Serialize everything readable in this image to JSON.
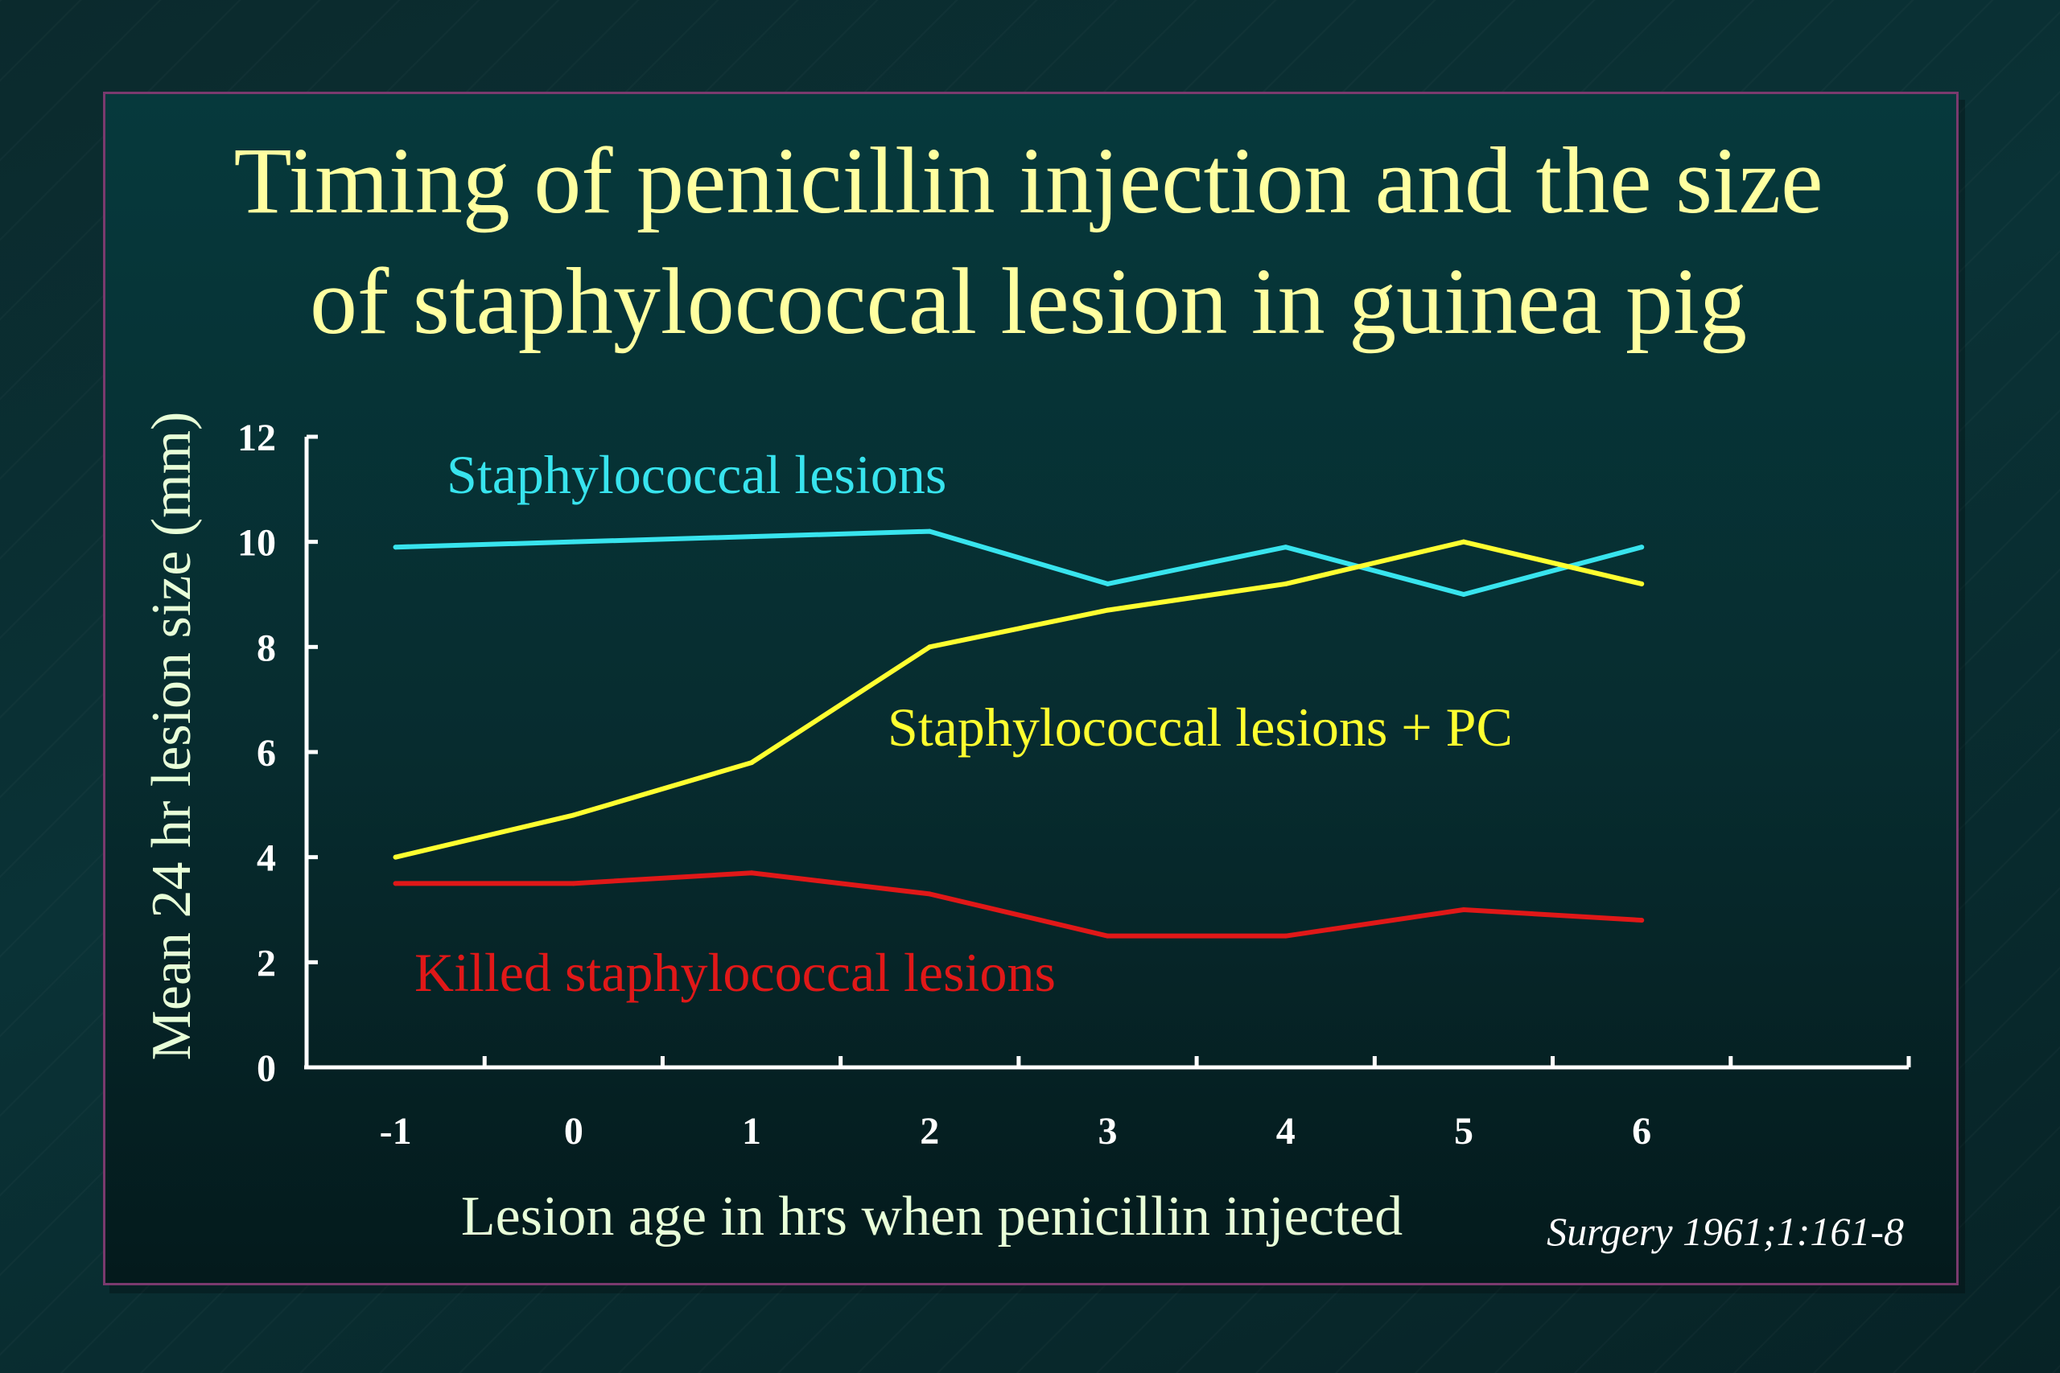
{
  "title_lines": [
    "Timing of penicillin injection and the size",
    "of staphylococcal lesion in guinea pig"
  ],
  "citation": "Surgery 1961;1:161-8",
  "chart_data": {
    "type": "line",
    "xlabel": "Lesion age in hrs when penicillin injected",
    "ylabel": "Mean 24 hr lesion size (mm)",
    "x": [
      -1,
      0,
      1,
      2,
      3,
      4,
      5,
      6
    ],
    "x_tick_labels": [
      "-1",
      "0",
      "1",
      "2",
      "3",
      "4",
      "5",
      "6"
    ],
    "xlim": [
      -1.5,
      7.5
    ],
    "ylim": [
      0,
      12
    ],
    "y_ticks": [
      0,
      2,
      4,
      6,
      8,
      10,
      12
    ],
    "grid": false,
    "series": [
      {
        "name": "Staphylococcal lesions",
        "color": "#38e4ee",
        "values": [
          9.9,
          10.0,
          10.1,
          10.2,
          9.2,
          9.9,
          9.0,
          9.9
        ]
      },
      {
        "name": "Staphylococcal lesions + PC",
        "color": "#ffff30",
        "values": [
          4.0,
          4.8,
          5.8,
          8.0,
          8.7,
          9.2,
          10.0,
          9.2
        ]
      },
      {
        "name": "Killed staphylococcal lesions",
        "color": "#e01818",
        "values": [
          3.5,
          3.5,
          3.7,
          3.3,
          2.5,
          2.5,
          3.0,
          2.8
        ]
      }
    ]
  }
}
